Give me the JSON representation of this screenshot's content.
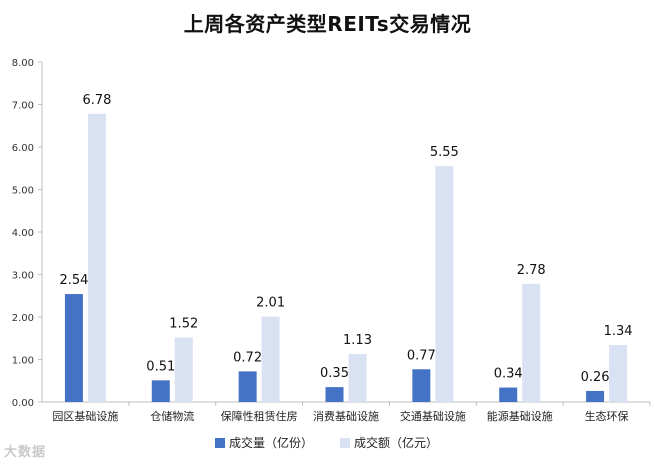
{
  "chart_data": {
    "type": "bar",
    "title": "上周各资产类型REITs交易情况",
    "categories": [
      "园区基础设施",
      "仓储物流",
      "保障性租赁住房",
      "消费基础设施",
      "交通基础设施",
      "能源基础设施",
      "生态环保"
    ],
    "series": [
      {
        "name": "成交量（亿份）",
        "values": [
          2.54,
          0.51,
          0.72,
          0.35,
          0.77,
          0.34,
          0.26
        ],
        "color": "#4472C4"
      },
      {
        "name": "成交额（亿元）",
        "values": [
          6.78,
          1.52,
          2.01,
          1.13,
          5.55,
          2.78,
          1.34
        ],
        "color": "#D9E2F3"
      }
    ],
    "ylim": [
      0,
      8
    ],
    "yticks": [
      "0.00",
      "1.00",
      "2.00",
      "3.00",
      "4.00",
      "5.00",
      "6.00",
      "7.00",
      "8.00"
    ],
    "grid": false,
    "legend_position": "bottom",
    "xlabel": "",
    "ylabel": ""
  },
  "watermark": "大数据"
}
